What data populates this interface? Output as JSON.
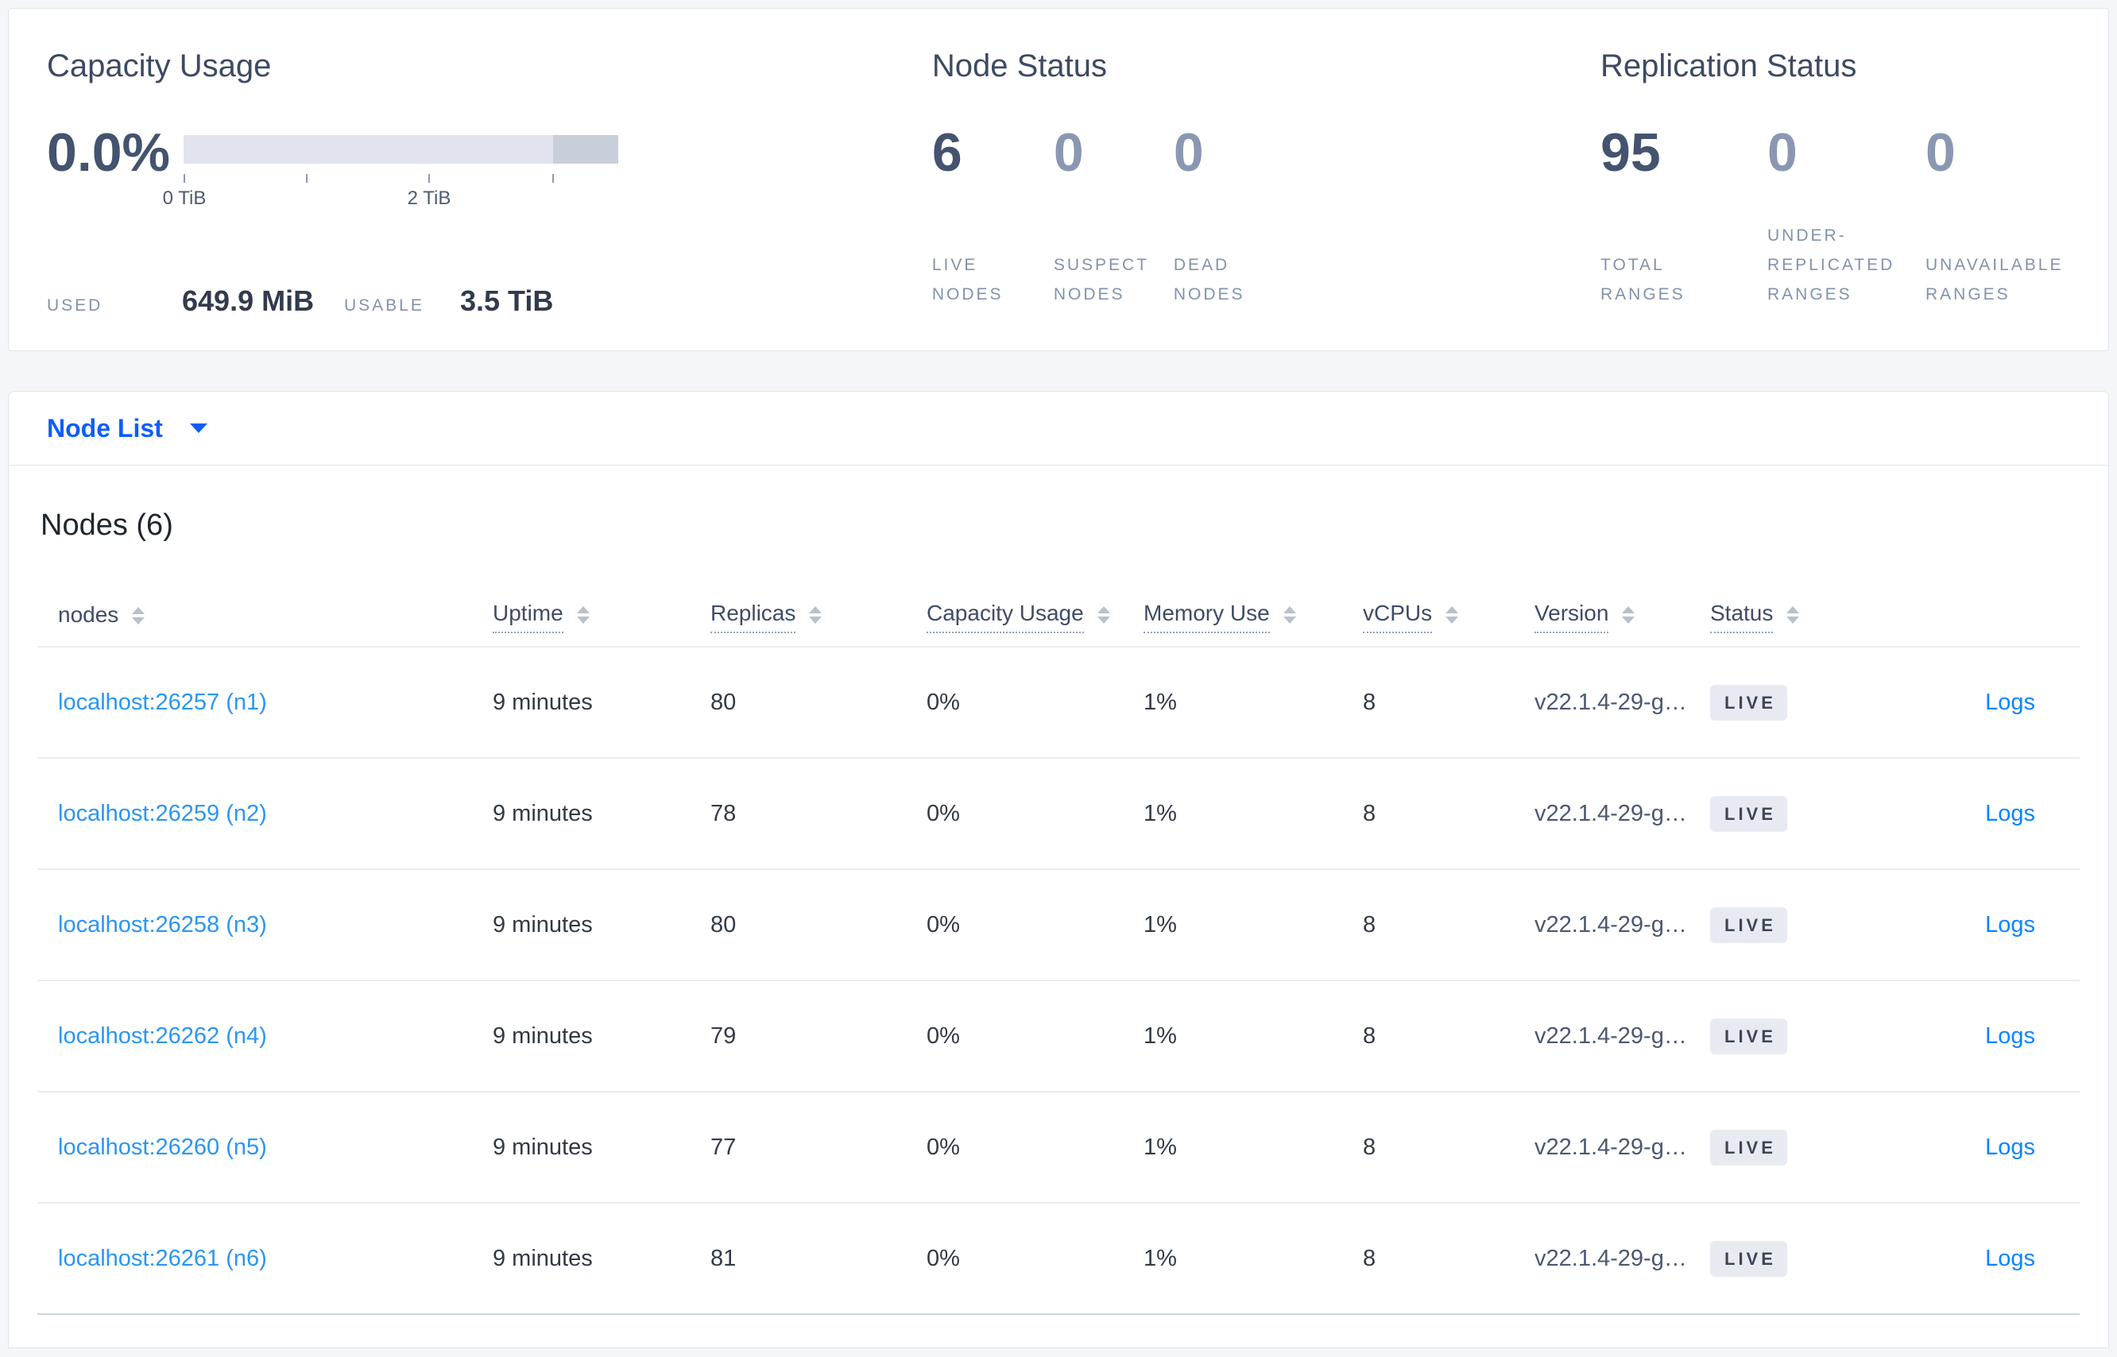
{
  "summary": {
    "capacity": {
      "title": "Capacity Usage",
      "percent": "0.0%",
      "tick_labels": [
        "0 TiB",
        "2 TiB"
      ],
      "used_label": "USED",
      "used_value": "649.9 MiB",
      "usable_label": "USABLE",
      "usable_value": "3.5 TiB"
    },
    "node_status": {
      "title": "Node Status",
      "metrics": [
        {
          "value": "6",
          "label": "LIVE NODES"
        },
        {
          "value": "0",
          "label": "SUSPECT NODES"
        },
        {
          "value": "0",
          "label": "DEAD NODES"
        }
      ]
    },
    "replication": {
      "title": "Replication Status",
      "metrics": [
        {
          "value": "95",
          "label": "TOTAL RANGES"
        },
        {
          "value": "0",
          "label": "UNDER-REPLICATED RANGES"
        },
        {
          "value": "0",
          "label": "UNAVAILABLE RANGES"
        }
      ]
    }
  },
  "view_selector": {
    "label": "Node List"
  },
  "nodes": {
    "heading": "Nodes (6)",
    "columns": [
      {
        "label": "nodes"
      },
      {
        "label": "Uptime"
      },
      {
        "label": "Replicas"
      },
      {
        "label": "Capacity Usage"
      },
      {
        "label": "Memory Use"
      },
      {
        "label": "vCPUs"
      },
      {
        "label": "Version"
      },
      {
        "label": "Status"
      }
    ],
    "rows": [
      {
        "node": "localhost:26257 (n1)",
        "uptime": "9 minutes",
        "replicas": "80",
        "capacity": "0%",
        "memory": "1%",
        "vcpus": "8",
        "version": "v22.1.4-29-g…",
        "status": "LIVE",
        "logs": "Logs"
      },
      {
        "node": "localhost:26259 (n2)",
        "uptime": "9 minutes",
        "replicas": "78",
        "capacity": "0%",
        "memory": "1%",
        "vcpus": "8",
        "version": "v22.1.4-29-g…",
        "status": "LIVE",
        "logs": "Logs"
      },
      {
        "node": "localhost:26258 (n3)",
        "uptime": "9 minutes",
        "replicas": "80",
        "capacity": "0%",
        "memory": "1%",
        "vcpus": "8",
        "version": "v22.1.4-29-g…",
        "status": "LIVE",
        "logs": "Logs"
      },
      {
        "node": "localhost:26262 (n4)",
        "uptime": "9 minutes",
        "replicas": "79",
        "capacity": "0%",
        "memory": "1%",
        "vcpus": "8",
        "version": "v22.1.4-29-g…",
        "status": "LIVE",
        "logs": "Logs"
      },
      {
        "node": "localhost:26260 (n5)",
        "uptime": "9 minutes",
        "replicas": "77",
        "capacity": "0%",
        "memory": "1%",
        "vcpus": "8",
        "version": "v22.1.4-29-g…",
        "status": "LIVE",
        "logs": "Logs"
      },
      {
        "node": "localhost:26261 (n6)",
        "uptime": "9 minutes",
        "replicas": "81",
        "capacity": "0%",
        "memory": "1%",
        "vcpus": "8",
        "version": "v22.1.4-29-g…",
        "status": "LIVE",
        "logs": "Logs"
      }
    ]
  },
  "colors": {
    "accent_blue": "#0d5ef7",
    "node_link_blue": "#2b95f3",
    "logs_link_blue": "#0b84ff",
    "dark_slate": "#44536e",
    "muted_metric": "#8a97b2",
    "small_label": "#8292ac",
    "badge_bg": "#e7ebf1",
    "bar_light": "#e1e4ee",
    "bar_dark": "#c9cedb",
    "page_bg": "#f4f6f9"
  }
}
